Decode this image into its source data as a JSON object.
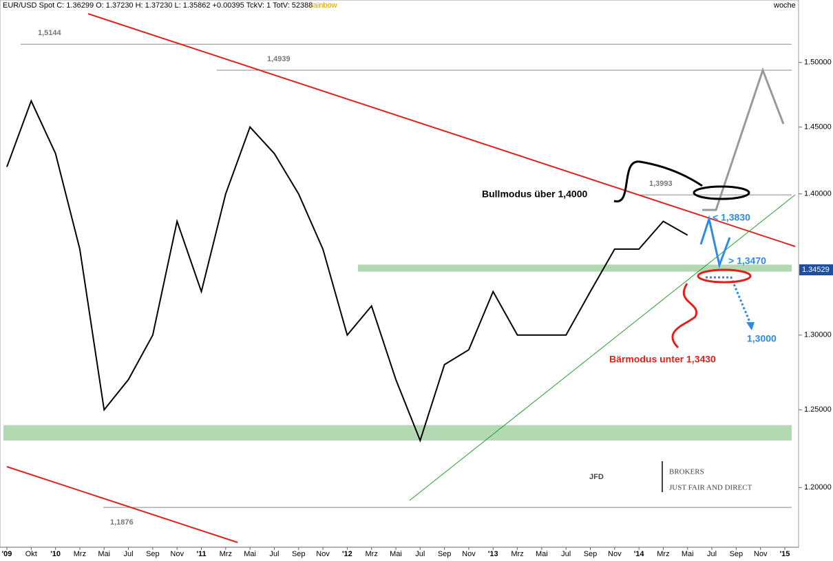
{
  "chart_data": {
    "type": "line",
    "header": "EUR/USD Spot C: 1.36299 O: 1.37230 H: 1.37230 L: 1.35862 +0.00395 TckV: 1 TotV: 52388",
    "indicator": "rainbow",
    "period": "woche",
    "categories": [
      "'09",
      "Okt",
      "'10",
      "Mrz",
      "Mai",
      "Jul",
      "Sep",
      "Nov",
      "'11",
      "Mrz",
      "Mai",
      "Jul",
      "Sep",
      "Nov",
      "'12",
      "Mrz",
      "Mai",
      "Jul",
      "Sep",
      "Nov",
      "'13",
      "Mrz",
      "Mai",
      "Jul",
      "Sep",
      "Nov",
      "'14",
      "Mrz",
      "Mai",
      "Jul",
      "Sep",
      "Nov",
      "'15"
    ],
    "series": [
      {
        "name": "EUR/USD Spot",
        "color": "#000000",
        "values": [
          1.42,
          1.47,
          1.43,
          1.36,
          1.25,
          1.27,
          1.3,
          1.38,
          1.33,
          1.4,
          1.45,
          1.43,
          1.4,
          1.36,
          1.3,
          1.32,
          1.27,
          1.23,
          1.28,
          1.29,
          1.33,
          1.3,
          1.3,
          1.3,
          1.33,
          1.36,
          1.36,
          1.38,
          1.37,
          null,
          null,
          null,
          null
        ]
      }
    ],
    "ylim": [
      1.163,
      1.55
    ],
    "log_scale": true,
    "yticks": [
      {
        "value": 1.2,
        "label": "1.20000"
      },
      {
        "value": 1.25,
        "label": "1.25000"
      },
      {
        "value": 1.3,
        "label": "1.30000"
      },
      {
        "value": 1.4,
        "label": "1.40000"
      },
      {
        "value": 1.45,
        "label": "1.45000"
      },
      {
        "value": 1.5,
        "label": "1.50000"
      }
    ],
    "price_marker": 1.34529,
    "levels": {
      "values": [
        1.5144,
        1.4939,
        1.3993,
        1.1876
      ],
      "value_labels": [
        "1,5144",
        "1,4939",
        "1,3993",
        "1,1876"
      ]
    },
    "zones": [
      [
        1.344,
        1.349
      ],
      [
        1.23,
        1.24
      ]
    ],
    "zone_color": "#9fcf9f",
    "annotations": {
      "bull": "Bullmodus über 1,4000",
      "bear": "Bärmodus unter 1,3430",
      "resistance": "< 1,3830",
      "support": "> 1,3470",
      "target": "1,3000"
    },
    "logo": {
      "main": "JFD",
      "brand": "BROKERS",
      "slogan": "JUST FAIR AND DIRECT"
    }
  }
}
